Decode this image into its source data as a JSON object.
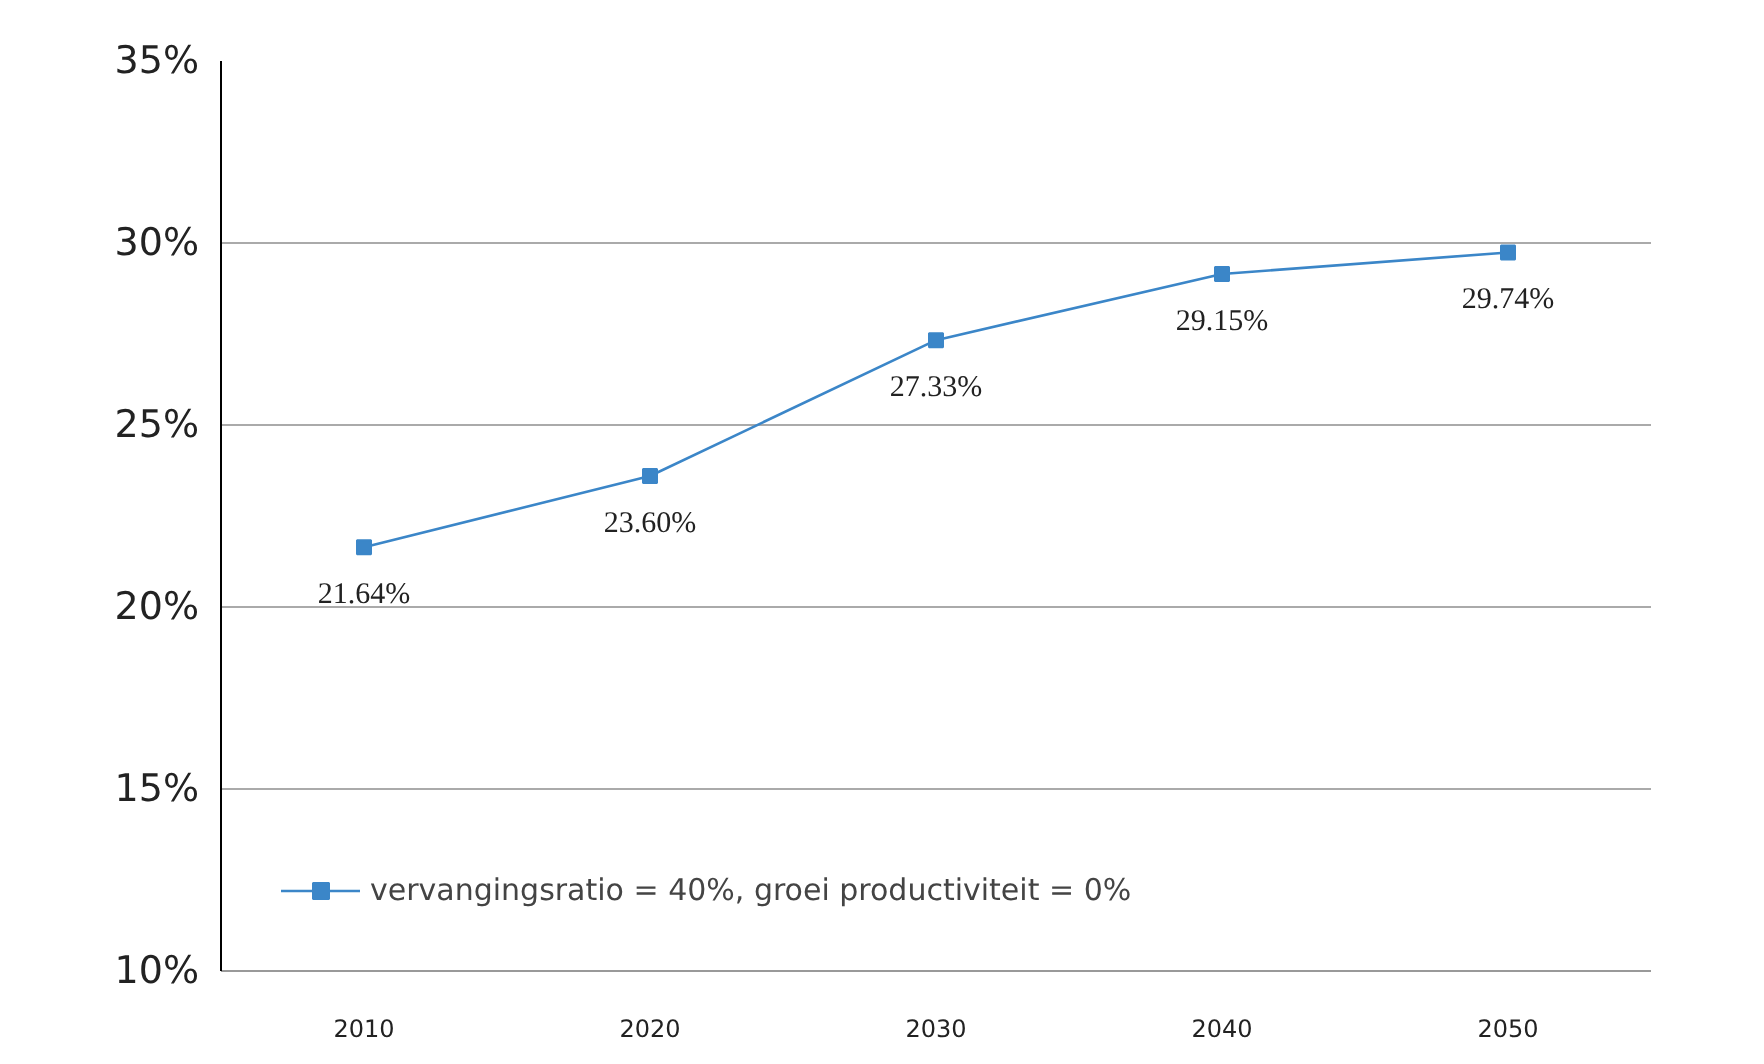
{
  "chart_data": {
    "type": "line",
    "categories": [
      "2010",
      "2020",
      "2030",
      "2040",
      "2050"
    ],
    "series": [
      {
        "name": "vervangingsratio = 40%, groei productiviteit = 0%",
        "color": "#3b86c8",
        "values": [
          21.64,
          23.6,
          27.33,
          29.15,
          29.74
        ],
        "value_labels": [
          "21.64%",
          "23.60%",
          "27.33%",
          "29.15%",
          "29.74%"
        ]
      }
    ],
    "ylim": [
      10,
      35
    ],
    "yticks": [
      {
        "value": 10,
        "label": "10%"
      },
      {
        "value": 15,
        "label": "15%"
      },
      {
        "value": 20,
        "label": "20%"
      },
      {
        "value": 25,
        "label": "25%"
      },
      {
        "value": 30,
        "label": "30%"
      },
      {
        "value": 35,
        "label": "35%"
      }
    ],
    "grid": "y",
    "legend": "bottom left",
    "marker": "square",
    "line_style": "solid"
  }
}
